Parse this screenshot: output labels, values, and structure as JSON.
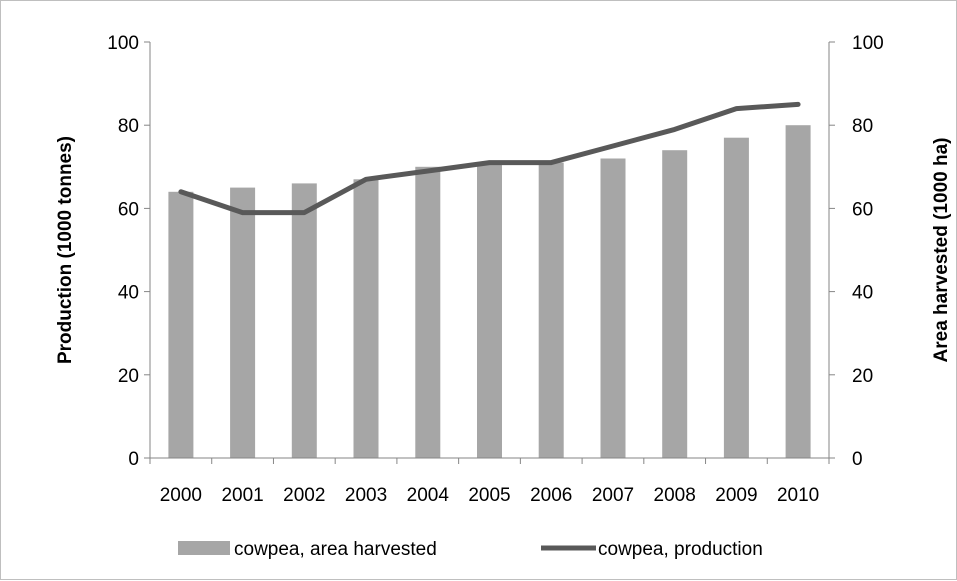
{
  "chart_data": {
    "type": "bar+line",
    "title": "",
    "categories": [
      "2000",
      "2001",
      "2002",
      "2003",
      "2004",
      "2005",
      "2006",
      "2007",
      "2008",
      "2009",
      "2010"
    ],
    "series": [
      {
        "name": "cowpea, area harvested",
        "type": "bar",
        "axis": "right",
        "values": [
          64,
          65,
          66,
          67,
          70,
          71,
          71,
          72,
          74,
          77,
          80
        ],
        "color": "#a6a6a6"
      },
      {
        "name": "cowpea, production",
        "type": "line",
        "axis": "left",
        "values": [
          64,
          59,
          59,
          67,
          69,
          71,
          71,
          75,
          79,
          84,
          85
        ],
        "color": "#595959"
      }
    ],
    "ylabel_left": "Production (1000 tonnes)",
    "ylabel_right": "Area harvested (1000 ha)",
    "ylim_left": [
      0,
      100
    ],
    "ylim_right": [
      0,
      100
    ],
    "yticks": [
      0,
      20,
      40,
      60,
      80,
      100
    ],
    "grid": false,
    "legend_position": "bottom"
  }
}
